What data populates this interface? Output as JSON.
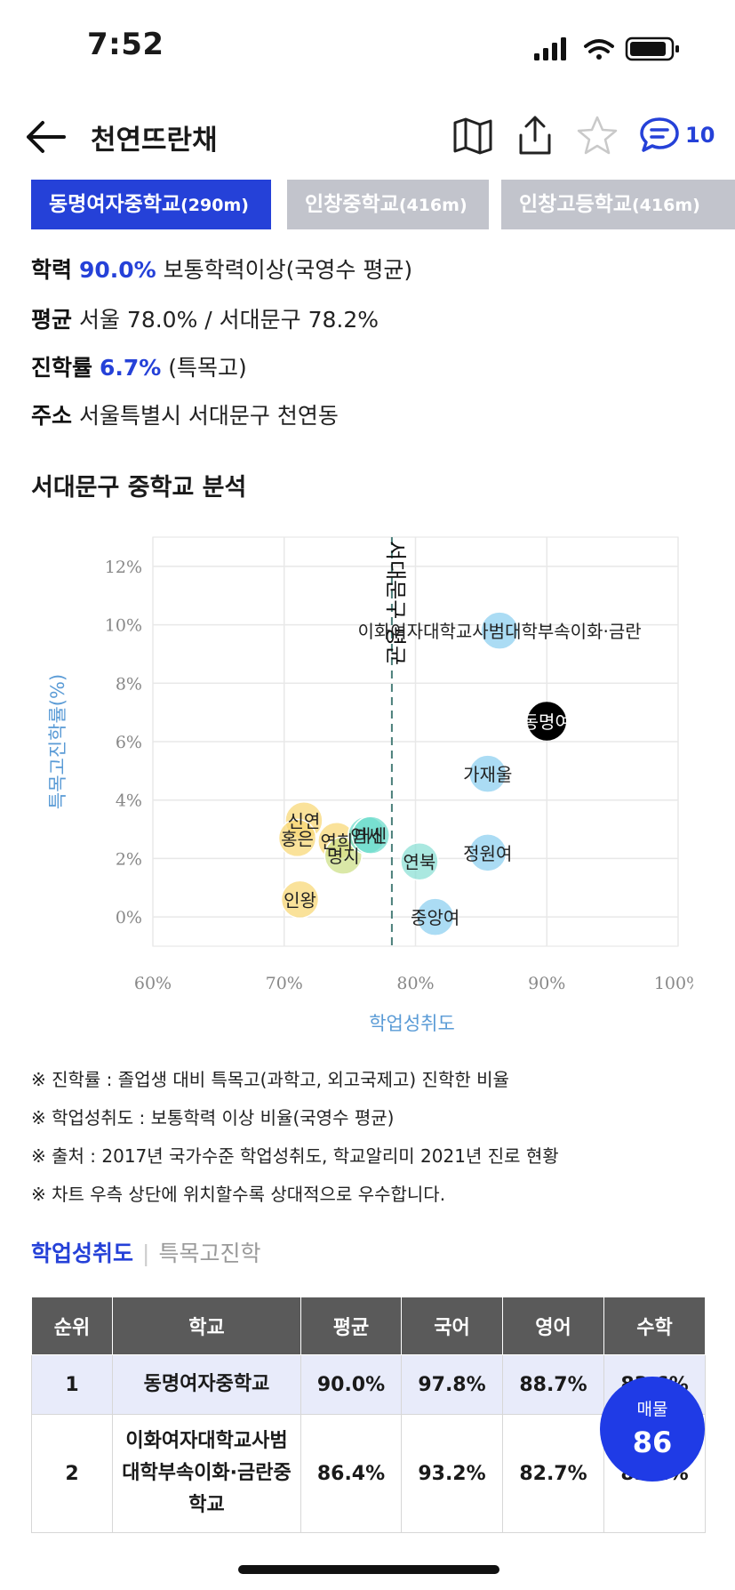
{
  "status": {
    "time": "7:52"
  },
  "nav": {
    "title": "천연뜨란채",
    "comment_count": "10"
  },
  "school_tabs": [
    {
      "name": "동명여자중학교",
      "dist": "(290m)",
      "active": true
    },
    {
      "name": "인창중학교",
      "dist": "(416m)",
      "active": false
    },
    {
      "name": "인창고등학교",
      "dist": "(416m)",
      "active": false
    }
  ],
  "info": {
    "achievement_label": "학력",
    "achievement_value": "90.0%",
    "achievement_desc": "보통학력이상(국영수 평균)",
    "average_label": "평균",
    "average_text": "서울 78.0% / 서대문구 78.2%",
    "advance_label": "진학률",
    "advance_value": "6.7%",
    "advance_desc": "(특목고)",
    "address_label": "주소",
    "address_text": "서울특별시 서대문구 천연동"
  },
  "section_title": "서대문구 중학교 분석",
  "chart_data": {
    "type": "scatter",
    "xlabel": "학업성취도",
    "ylabel": "특목고진학률(%)",
    "xlim": [
      60,
      100
    ],
    "ylim": [
      -1,
      13
    ],
    "x_ticks": [
      "60%",
      "70%",
      "80%",
      "90%",
      "100%"
    ],
    "y_ticks": [
      "0%",
      "2%",
      "4%",
      "6%",
      "8%",
      "10%",
      "12%"
    ],
    "grid": true,
    "reference_line": {
      "x": 78.2,
      "label": "서대문구 평균"
    },
    "points": [
      {
        "label": "이화여자대학교사범대학부속이화·금란",
        "x": 86.4,
        "y": 9.8,
        "color": "#8fd0f0"
      },
      {
        "label": "동명여",
        "x": 90.0,
        "y": 6.7,
        "color": "#000000"
      },
      {
        "label": "가재울",
        "x": 85.5,
        "y": 4.9,
        "color": "#8fd0f0"
      },
      {
        "label": "정원여",
        "x": 85.5,
        "y": 2.2,
        "color": "#8fd0f0"
      },
      {
        "label": "연북",
        "x": 80.3,
        "y": 1.9,
        "color": "#8ee0d6"
      },
      {
        "label": "중앙여",
        "x": 81.5,
        "y": 0.0,
        "color": "#8fd0f0"
      },
      {
        "label": "연희",
        "x": 74.0,
        "y": 2.6,
        "color": "#f8d878"
      },
      {
        "label": "명지",
        "x": 74.5,
        "y": 2.1,
        "color": "#cde08a"
      },
      {
        "label": "신연",
        "x": 71.5,
        "y": 3.3,
        "color": "#f8d878"
      },
      {
        "label": "홍은",
        "x": 71.0,
        "y": 2.7,
        "color": "#f8d878"
      },
      {
        "label": "연세",
        "x": 76.3,
        "y": 2.8,
        "color": "#6fdccc"
      },
      {
        "label": "대신",
        "x": 76.6,
        "y": 2.8,
        "color": "#6fdccc"
      },
      {
        "label": "인왕",
        "x": 71.2,
        "y": 0.6,
        "color": "#f8d878"
      }
    ]
  },
  "notes": [
    "※ 진학률 : 졸업생 대비 특목고(과학고, 외고국제고) 진학한 비율",
    "※ 학업성취도 : 보통학력 이상 비율(국영수 평균)",
    "※ 출처 : 2017년 국가수준 학업성취도, 학교알리미 2021년 진로 현황",
    "※ 차트 우측 상단에 위치할수록 상대적으로 우수합니다."
  ],
  "rank_tabs": {
    "active": "학업성취도",
    "inactive": "특목고진학"
  },
  "table": {
    "headers": [
      "순위",
      "학교",
      "평균",
      "국어",
      "영어",
      "수학"
    ],
    "rows": [
      [
        "1",
        "동명여자중학교",
        "90.0%",
        "97.8%",
        "88.7%",
        "83.6%"
      ],
      [
        "2",
        "이화여자대학교사범대학부속이화·금란중학교",
        "86.4%",
        "93.2%",
        "82.7%",
        "83.2%"
      ]
    ]
  },
  "fab": {
    "label": "매물",
    "count": "86"
  }
}
